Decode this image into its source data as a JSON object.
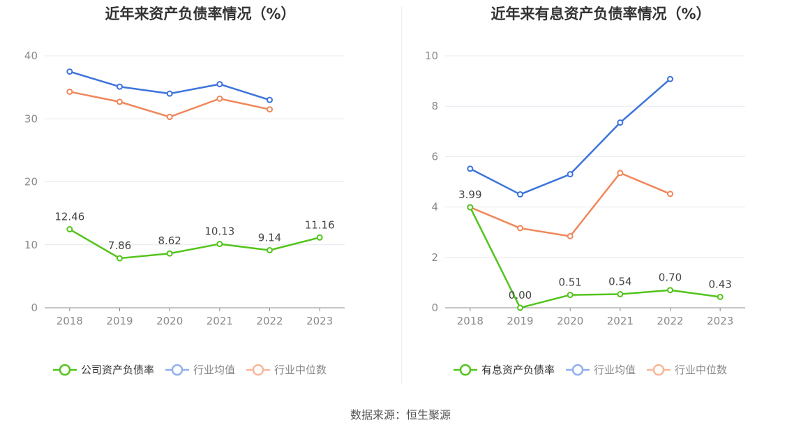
{
  "source": "数据来源：恒生聚源",
  "chart_data": [
    {
      "type": "line",
      "title": "近年来资产负债率情况（%）",
      "categories": [
        "2018",
        "2019",
        "2020",
        "2021",
        "2022",
        "2023"
      ],
      "ylim": [
        0,
        40
      ],
      "yticks": [
        0,
        10,
        20,
        30,
        40
      ],
      "grid": true,
      "legend_position": "bottom",
      "series": [
        {
          "name": "公司资产负债率",
          "color": "#52c41a",
          "values": [
            12.46,
            7.86,
            8.62,
            10.13,
            9.14,
            11.16
          ],
          "labels": [
            "12.46",
            "7.86",
            "8.62",
            "10.13",
            "9.14",
            "11.16"
          ]
        },
        {
          "name": "行业均值",
          "color": "#3d74db",
          "values": [
            37.5,
            35.1,
            34.0,
            35.5,
            33.0,
            null
          ]
        },
        {
          "name": "行业中位数",
          "color": "#f0875a",
          "values": [
            34.3,
            32.7,
            30.3,
            33.2,
            31.5,
            null
          ]
        }
      ]
    },
    {
      "type": "line",
      "title": "近年来有息资产负债率情况（%）",
      "categories": [
        "2018",
        "2019",
        "2020",
        "2021",
        "2022",
        "2023"
      ],
      "ylim": [
        0,
        10
      ],
      "yticks": [
        0,
        2,
        4,
        6,
        8,
        10
      ],
      "grid": true,
      "legend_position": "bottom",
      "series": [
        {
          "name": "有息资产负债率",
          "color": "#52c41a",
          "values": [
            3.99,
            0.0,
            0.51,
            0.54,
            0.7,
            0.43
          ],
          "labels": [
            "3.99",
            "0.00",
            "0.51",
            "0.54",
            "0.70",
            "0.43"
          ]
        },
        {
          "name": "行业均值",
          "color": "#3d74db",
          "values": [
            5.52,
            4.5,
            5.3,
            7.35,
            9.08,
            null
          ]
        },
        {
          "name": "行业中位数",
          "color": "#f0875a",
          "values": [
            3.99,
            3.16,
            2.84,
            5.35,
            4.52,
            null
          ]
        }
      ]
    }
  ]
}
